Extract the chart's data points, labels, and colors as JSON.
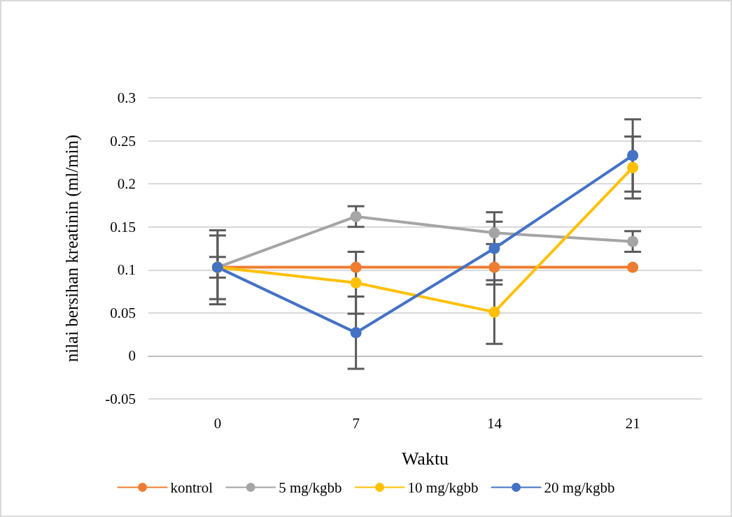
{
  "chart_data": {
    "type": "line",
    "xlabel": "Waktu",
    "ylabel": "nilai bersihan kreatinin (ml/min)",
    "categories": [
      "0",
      "7",
      "14",
      "21"
    ],
    "ylim": [
      -0.05,
      0.3
    ],
    "yticks": [
      -0.05,
      0,
      0.05,
      0.1,
      0.15,
      0.2,
      0.25,
      0.3
    ],
    "grid": "y",
    "legend": "bottom",
    "marker": "circle",
    "line_style": "solid",
    "series": [
      {
        "name": "kontrol",
        "color": "#ed7d31",
        "values": [
          0.103,
          0.103,
          0.103,
          0.103
        ]
      },
      {
        "name": "5 mg/kgbb",
        "color": "#a5a5a5",
        "values": [
          0.103,
          0.162,
          0.143,
          0.133
        ],
        "errors": [
          0.012,
          0.012,
          0.013,
          0.012
        ]
      },
      {
        "name": "10 mg/kgbb",
        "color": "#ffc000",
        "values": [
          0.103,
          0.085,
          0.051,
          0.219
        ],
        "errors": [
          0.037,
          0.036,
          0.037,
          0.036
        ]
      },
      {
        "name": "20 mg/kgbb",
        "color": "#4472c4",
        "values": [
          0.103,
          0.027,
          0.125,
          0.233
        ],
        "errors": [
          0.043,
          0.042,
          0.042,
          0.042
        ]
      }
    ]
  }
}
